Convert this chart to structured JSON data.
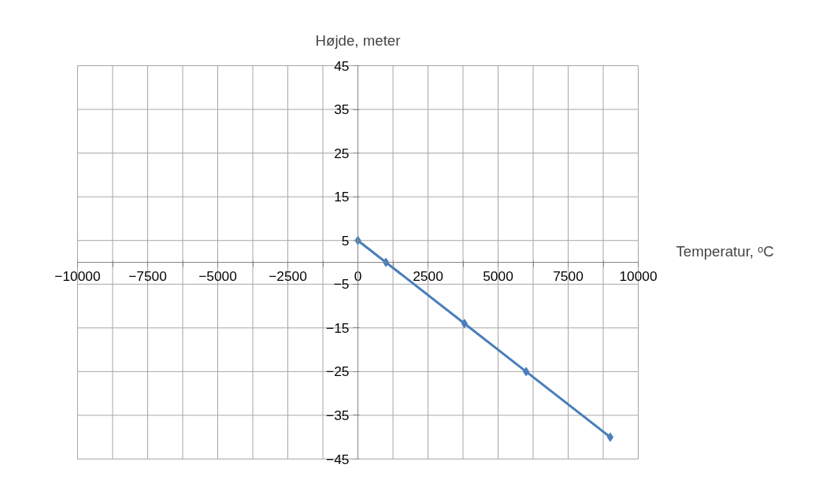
{
  "chart_data": {
    "type": "line",
    "xlabel": "Temperatur, ᵒC",
    "ylabel": "Højde, meter",
    "x": [
      0,
      1000,
      3800,
      6000,
      9000
    ],
    "series": [
      {
        "color": "#4a7ebb",
        "values": [
          5,
          0,
          -14,
          -25,
          -40
        ]
      }
    ],
    "xlim": [
      -10000,
      10000
    ],
    "xticks": [
      -10000,
      {
        "value": -8750,
        "label": null
      },
      -7500,
      {
        "value": -6250,
        "label": null
      },
      -5000,
      {
        "value": -3750,
        "label": null
      },
      -2500,
      {
        "value": -1250,
        "label": null
      },
      0,
      {
        "value": 1250,
        "label": null
      },
      2500,
      {
        "value": 3750,
        "label": null
      },
      5000,
      {
        "value": 6250,
        "label": null
      },
      7500,
      {
        "value": 8750,
        "label": null
      },
      10000
    ],
    "ylim": [
      -45,
      45
    ],
    "yticks": [
      -45,
      -35,
      -25,
      -15,
      -5,
      5,
      15,
      25,
      35,
      45
    ],
    "grid": true,
    "marker": "diamond",
    "line_style": "solid"
  }
}
